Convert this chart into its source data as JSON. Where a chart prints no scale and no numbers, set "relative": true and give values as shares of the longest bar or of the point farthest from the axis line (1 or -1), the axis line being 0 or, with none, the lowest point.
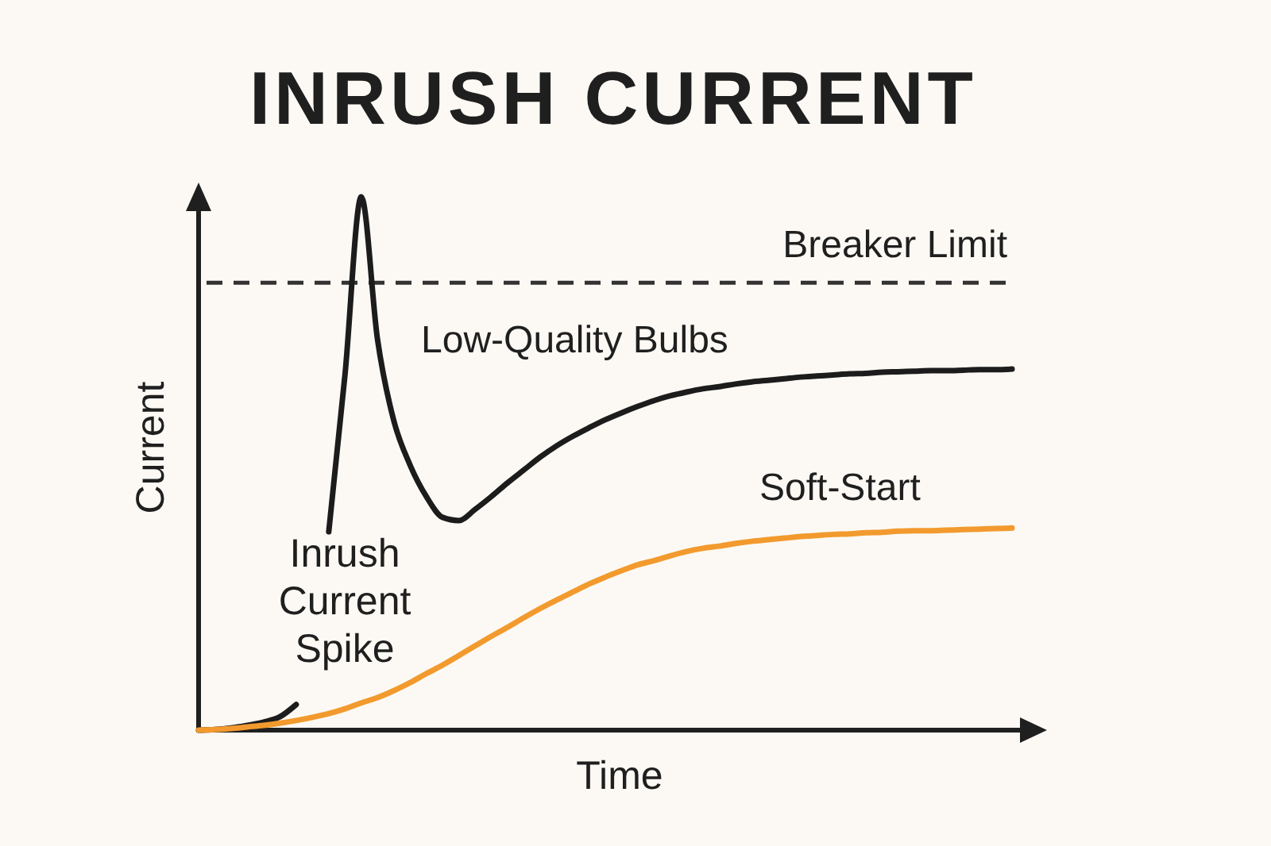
{
  "chart_data": {
    "type": "line",
    "title": "INRUSH CURRENT",
    "xlabel": "Time",
    "ylabel": "Current",
    "relative": true,
    "categories": [
      null,
      null,
      null,
      null,
      null,
      null,
      null,
      null,
      null,
      null,
      null,
      null,
      null,
      null,
      null,
      null,
      null,
      null,
      null,
      null,
      null,
      null,
      null,
      null,
      null,
      null,
      null,
      null,
      null,
      null,
      null,
      null,
      null,
      null,
      null,
      null,
      null,
      null,
      null,
      null,
      null,
      null,
      null,
      null,
      null,
      null,
      null,
      null,
      null,
      null,
      null
    ],
    "series": [
      {
        "name": "Low-Quality Bulbs",
        "color": "#1c1c1c",
        "values": [
          0,
          0.001,
          0.004,
          0.009,
          0.015,
          0.025,
          0.048,
          null,
          0.372,
          0.667,
          1,
          0.732,
          0.58,
          0.497,
          0.438,
          0.399,
          0.393,
          0.414,
          0.438,
          0.464,
          0.488,
          0.512,
          0.533,
          0.551,
          0.567,
          0.582,
          0.595,
          0.607,
          0.618,
          0.627,
          0.634,
          0.64,
          0.644,
          0.649,
          0.653,
          0.656,
          0.659,
          0.662,
          0.664,
          0.666,
          0.668,
          0.669,
          0.671,
          0.672,
          0.673,
          0.674,
          0.674,
          0.675,
          0.676,
          0.676,
          0.677
        ]
      },
      {
        "name": "Soft-Start",
        "color": "#f29a2e",
        "values": [
          0,
          0.001,
          0.003,
          0.006,
          0.009,
          0.013,
          0.018,
          0.024,
          0.031,
          0.04,
          0.051,
          0.061,
          0.074,
          0.089,
          0.106,
          0.122,
          0.14,
          0.158,
          0.176,
          0.193,
          0.211,
          0.228,
          0.244,
          0.259,
          0.274,
          0.287,
          0.299,
          0.31,
          0.318,
          0.327,
          0.335,
          0.341,
          0.345,
          0.35,
          0.354,
          0.357,
          0.36,
          0.363,
          0.365,
          0.367,
          0.368,
          0.37,
          0.371,
          0.373,
          0.374,
          0.374,
          0.375,
          0.376,
          0.377,
          0.378,
          0.379
        ]
      }
    ],
    "ref_lines": [
      {
        "axis": "y",
        "value": 0.839,
        "label": "Breaker Limit",
        "color": "#333333",
        "line_style": "dashed"
      }
    ],
    "annotations": [
      "Inrush Current Spike"
    ]
  }
}
